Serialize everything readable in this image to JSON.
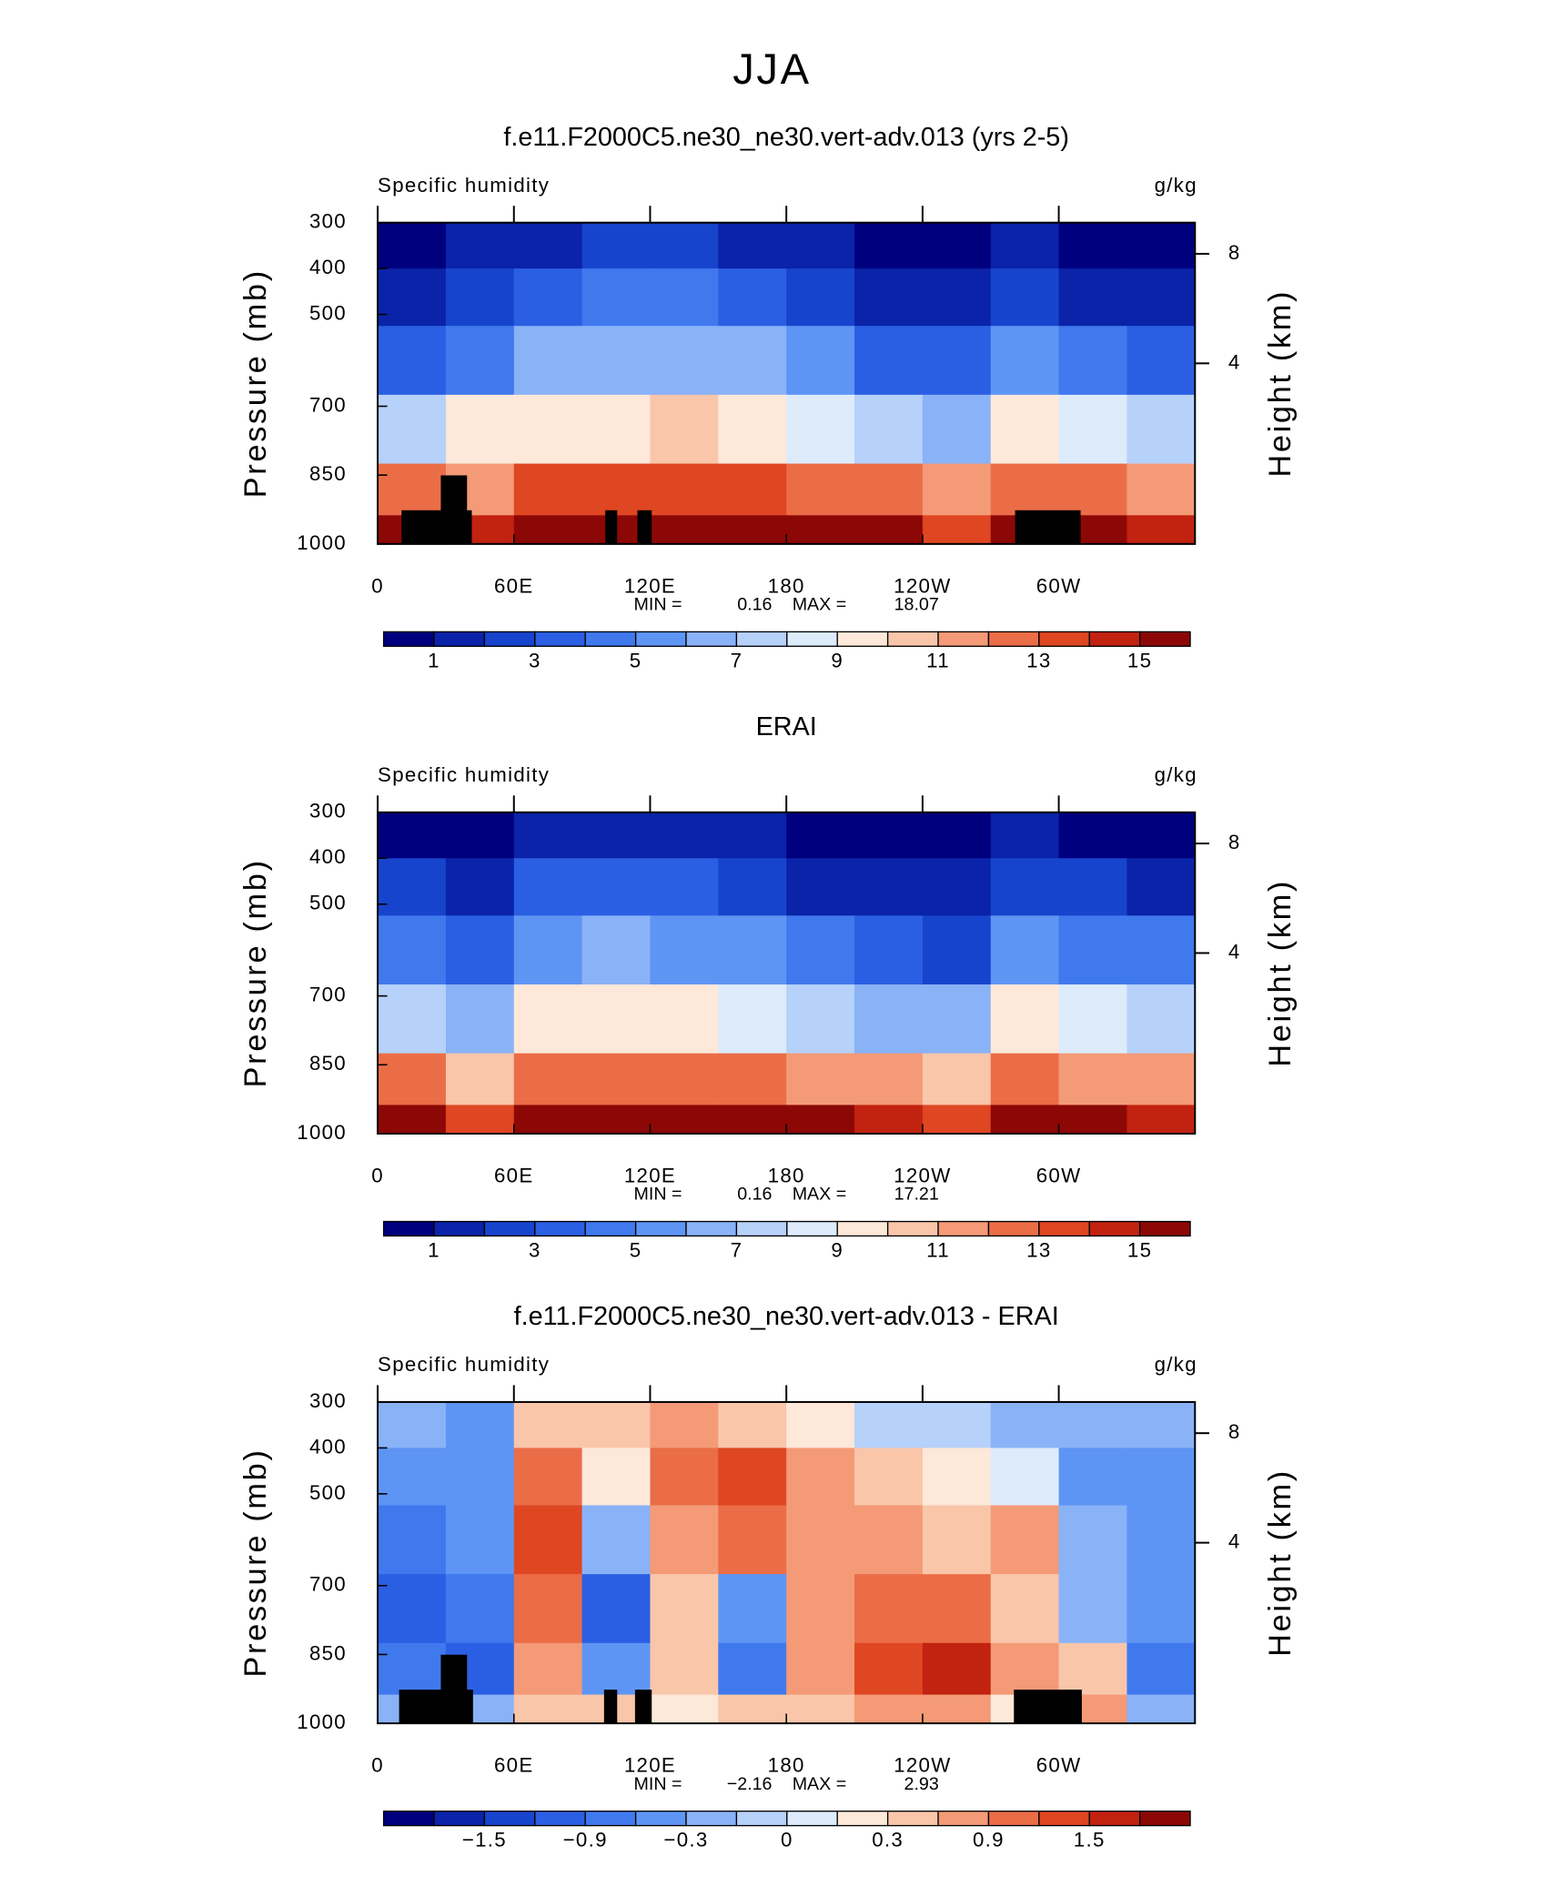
{
  "title": "JJA",
  "chart_data": [
    {
      "type": "contour",
      "title": "f.e11.F2000C5.ne30_ne30.vert-adv.013 (yrs 2-5)",
      "left_label": "Specific humidity",
      "right_label": "g/kg",
      "ylabel": "Pressure (mb)",
      "y2label": "Height (km)",
      "xlim": [
        0,
        360
      ],
      "xticks": [
        0,
        {
          "value": 60,
          "label": "60E"
        },
        {
          "value": 120,
          "label": "120E"
        },
        180,
        {
          "value": 240,
          "label": "120W"
        },
        {
          "value": 300,
          "label": "60W"
        }
      ],
      "ylim": [
        1000,
        300
      ],
      "yticks": [
        300,
        400,
        500,
        700,
        850,
        1000
      ],
      "y2ticks": [
        8,
        4
      ],
      "min_text": "MIN =",
      "min": 0.16,
      "max_text": "MAX =",
      "max": 18.07,
      "lon": [
        15,
        45,
        75,
        105,
        135,
        165,
        195,
        225,
        255,
        285,
        315,
        345
      ],
      "plev": [
        350,
        450,
        600,
        750,
        900,
        975
      ],
      "values": [
        [
          0.8,
          1,
          1.5,
          2,
          2,
          1.8,
          1,
          0.6,
          0.5,
          1.2,
          0.7,
          0.6
        ],
        [
          1.5,
          2.5,
          3.5,
          4,
          4,
          3.5,
          2.5,
          1.5,
          1.2,
          2.5,
          1.8,
          1.5
        ],
        [
          3.5,
          4.5,
          6,
          6.5,
          6.5,
          6,
          5,
          3.5,
          3,
          5,
          4,
          3.5
        ],
        [
          7,
          9,
          9.5,
          9.5,
          10,
          9.5,
          8.5,
          7,
          6.5,
          9,
          8,
          7
        ],
        [
          12,
          11,
          13,
          13,
          13.5,
          13,
          12.5,
          12,
          11.5,
          12,
          12,
          11
        ],
        [
          15,
          14,
          16,
          16.5,
          16,
          16,
          16,
          15,
          13,
          15,
          15.5,
          14
        ]
      ],
      "levels": [
        1,
        2,
        3,
        4,
        5,
        6,
        7,
        8,
        9,
        10,
        11,
        12,
        13,
        14,
        15
      ],
      "colors": [
        "#00007f",
        "#0a23a8",
        "#1744cc",
        "#2b5fe3",
        "#4079ee",
        "#5e95f4",
        "#8ab2f7",
        "#b6d1fa",
        "#ddebfb",
        "#fde8d9",
        "#f9c6aa",
        "#f49a77",
        "#ea6d47",
        "#df4622",
        "#c22210",
        "#8c0806"
      ],
      "colorbar_ticks": [
        1,
        3,
        5,
        7,
        9,
        11,
        13,
        15
      ]
    },
    {
      "type": "contour",
      "title": "ERAI",
      "left_label": "Specific humidity",
      "right_label": "g/kg",
      "ylabel": "Pressure (mb)",
      "y2label": "Height (km)",
      "xlim": [
        0,
        360
      ],
      "xticks": [
        0,
        {
          "value": 60,
          "label": "60E"
        },
        {
          "value": 120,
          "label": "120E"
        },
        180,
        {
          "value": 240,
          "label": "120W"
        },
        {
          "value": 300,
          "label": "60W"
        }
      ],
      "ylim": [
        1000,
        300
      ],
      "yticks": [
        300,
        400,
        500,
        700,
        850,
        1000
      ],
      "y2ticks": [
        8,
        4
      ],
      "min_text": "MIN =",
      "min": 0.16,
      "max_text": "MAX =",
      "max": 17.21,
      "lon": [
        15,
        45,
        75,
        105,
        135,
        165,
        195,
        225,
        255,
        285,
        315,
        345
      ],
      "plev": [
        350,
        450,
        600,
        750,
        900,
        975
      ],
      "values": [
        [
          0.9,
          0.7,
          1.2,
          1.6,
          1.4,
          1,
          0.6,
          0.5,
          0.5,
          1.3,
          0.9,
          0.7
        ],
        [
          2,
          1.5,
          3,
          3.5,
          3.2,
          2.5,
          1.8,
          1.2,
          1.2,
          2.8,
          2,
          1.8
        ],
        [
          4,
          3,
          5.5,
          6,
          5.8,
          5,
          4,
          3,
          2.8,
          5.2,
          4.5,
          4
        ],
        [
          7.5,
          6,
          9,
          9,
          9,
          8.5,
          7.5,
          6.5,
          6,
          9,
          8,
          7.5
        ],
        [
          12,
          10,
          12.5,
          12.5,
          12.5,
          12,
          11.5,
          11,
          10,
          12,
          11.5,
          11.5
        ],
        [
          15,
          13,
          16,
          16,
          16,
          15.5,
          15.5,
          14.5,
          13,
          15,
          15,
          14
        ]
      ],
      "levels": [
        1,
        2,
        3,
        4,
        5,
        6,
        7,
        8,
        9,
        10,
        11,
        12,
        13,
        14,
        15
      ],
      "colors": [
        "#00007f",
        "#0a23a8",
        "#1744cc",
        "#2b5fe3",
        "#4079ee",
        "#5e95f4",
        "#8ab2f7",
        "#b6d1fa",
        "#ddebfb",
        "#fde8d9",
        "#f9c6aa",
        "#f49a77",
        "#ea6d47",
        "#df4622",
        "#c22210",
        "#8c0806"
      ],
      "colorbar_ticks": [
        1,
        3,
        5,
        7,
        9,
        11,
        13,
        15
      ]
    },
    {
      "type": "contour",
      "title": "f.e11.F2000C5.ne30_ne30.vert-adv.013 - ERAI",
      "left_label": "Specific humidity",
      "right_label": "g/kg",
      "ylabel": "Pressure (mb)",
      "y2label": "Height (km)",
      "xlim": [
        0,
        360
      ],
      "xticks": [
        0,
        {
          "value": 60,
          "label": "60E"
        },
        {
          "value": 120,
          "label": "120E"
        },
        180,
        {
          "value": 240,
          "label": "120W"
        },
        {
          "value": 300,
          "label": "60W"
        }
      ],
      "ylim": [
        1000,
        300
      ],
      "yticks": [
        300,
        400,
        500,
        700,
        850,
        1000
      ],
      "y2ticks": [
        8,
        4
      ],
      "min_text": "MIN =",
      "min": {
        "value": -2.16,
        "label": "−2.16"
      },
      "max_text": "MAX =",
      "max": 2.93,
      "lon": [
        15,
        45,
        75,
        105,
        135,
        165,
        195,
        225,
        255,
        285,
        315,
        345
      ],
      "plev": [
        350,
        450,
        600,
        750,
        900,
        975
      ],
      "values": [
        [
          -0.3,
          -0.5,
          0.5,
          0.3,
          0.8,
          0.4,
          0.1,
          -0.05,
          -0.05,
          -0.2,
          -0.3,
          -0.3
        ],
        [
          -0.6,
          -0.5,
          1,
          0.2,
          1,
          1.2,
          0.6,
          0.3,
          0.2,
          0,
          -0.4,
          -0.4
        ],
        [
          -0.8,
          -0.6,
          1.2,
          -0.3,
          0.8,
          0.9,
          0.8,
          0.6,
          0.5,
          0.8,
          -0.3,
          -0.5
        ],
        [
          -1.2,
          -0.9,
          0.9,
          -1.2,
          0.5,
          -0.6,
          0.6,
          0.9,
          0.9,
          0.3,
          -0.2,
          -0.6
        ],
        [
          -0.9,
          -1,
          0.8,
          -0.6,
          0.3,
          -0.9,
          0.6,
          1.2,
          1.5,
          0.6,
          0.4,
          -0.9
        ],
        [
          -0.3,
          -0.3,
          0.4,
          0.3,
          0.2,
          0.3,
          0.3,
          0.6,
          0.6,
          0.2,
          0.6,
          -0.2
        ]
      ],
      "levels": [
        -1.8,
        -1.5,
        -1.2,
        -0.9,
        -0.6,
        -0.3,
        -0.1,
        0,
        0.1,
        0.3,
        0.6,
        0.9,
        1.2,
        1.5,
        1.8
      ],
      "colors": [
        "#00007f",
        "#0a23a8",
        "#1744cc",
        "#2b5fe3",
        "#4079ee",
        "#5e95f4",
        "#8ab2f7",
        "#b6d1fa",
        "#ddebfb",
        "#fde8d9",
        "#f9c6aa",
        "#f49a77",
        "#ea6d47",
        "#df4622",
        "#c22210",
        "#8c0806"
      ],
      "colorbar_ticks": [
        {
          "value": -1.5,
          "label": "−1.5"
        },
        {
          "value": -0.9,
          "label": "−0.9"
        },
        {
          "value": -0.3,
          "label": "−0.3"
        },
        0,
        0.3,
        0.9,
        1.5
      ]
    }
  ]
}
